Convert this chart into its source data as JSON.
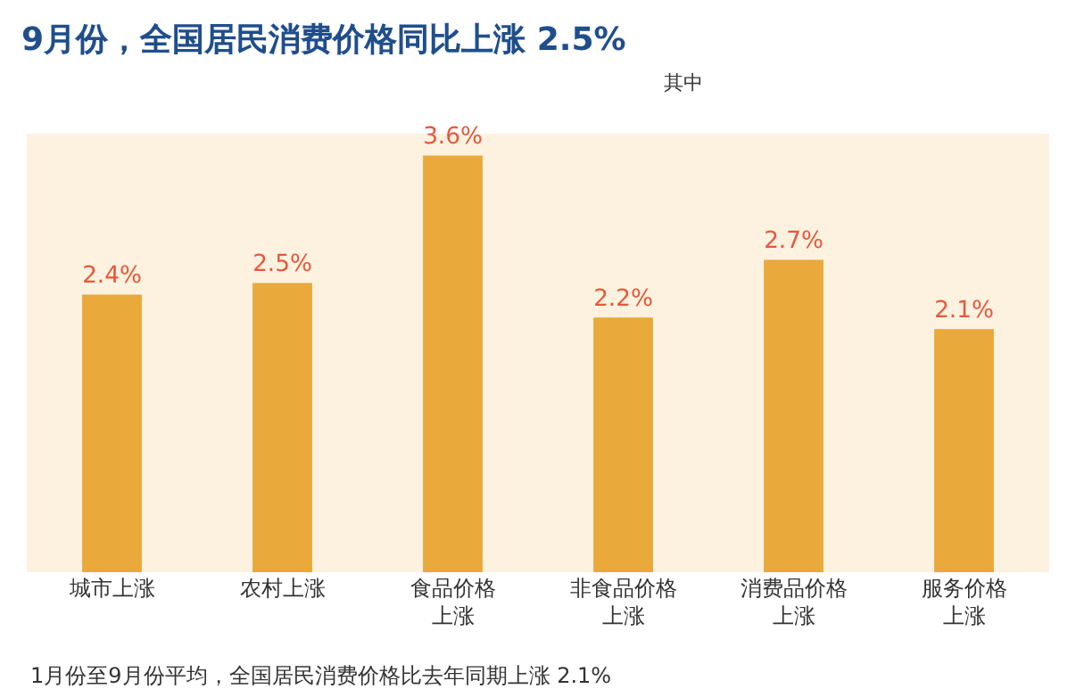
{
  "chart_data": {
    "type": "bar",
    "title": "9月份，全国居民消费价格同比上涨 2.5%",
    "subtitle": "其中",
    "categories": [
      "城市上涨",
      "农村上涨",
      "食品价格上涨",
      "非食品价格上涨",
      "消费品价格上涨",
      "服务价格上涨"
    ],
    "values": [
      2.4,
      2.5,
      3.6,
      2.2,
      2.7,
      2.1
    ],
    "color": "#e9a93b",
    "value_labels": [
      "2.4%",
      "2.5%",
      "3.6%",
      "2.2%",
      "2.7%",
      "2.1%"
    ],
    "annotations": [
      "1月份至9月份平均，全国居民消费价格比去年同期上涨 2.1%"
    ]
  }
}
